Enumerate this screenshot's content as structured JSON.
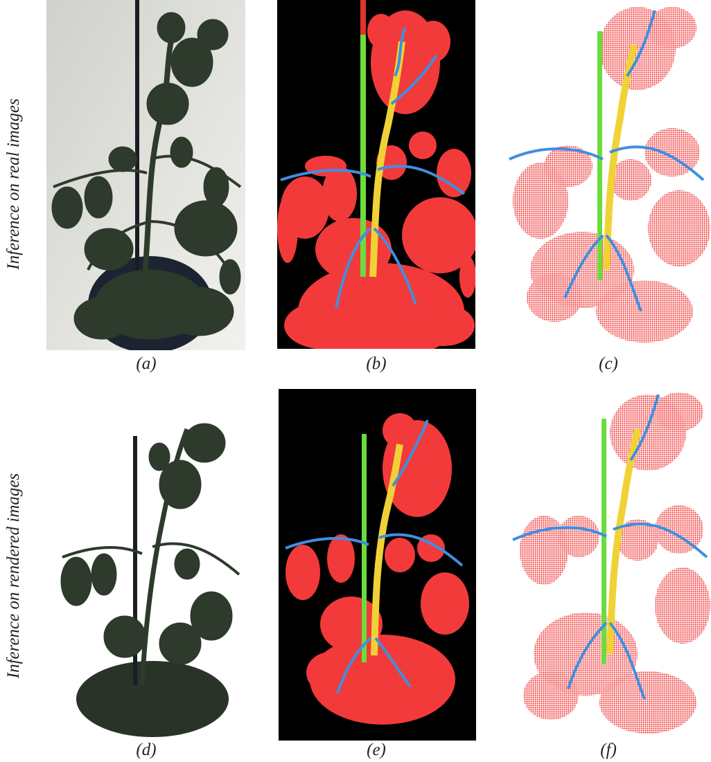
{
  "figure": {
    "row_labels": [
      "Inference on real images",
      "Inference on rendered images"
    ],
    "panels": [
      {
        "id": "a",
        "caption": "(a)",
        "kind": "photo-real"
      },
      {
        "id": "b",
        "caption": "(b)",
        "kind": "segmentation-mask"
      },
      {
        "id": "c",
        "caption": "(c)",
        "kind": "point-cloud"
      },
      {
        "id": "d",
        "caption": "(d)",
        "kind": "photo-rendered"
      },
      {
        "id": "e",
        "caption": "(e)",
        "kind": "segmentation-mask"
      },
      {
        "id": "f",
        "caption": "(f)",
        "kind": "point-cloud"
      }
    ],
    "colors": {
      "leaf_mask": "#f23a3a",
      "petiole": "#3f8fe0",
      "stem": "#f0d236",
      "support_pole": "#6bdc3c",
      "pole_tip": "#e0342e",
      "mask_background": "#000000",
      "photo_wall": "#d8d9d3",
      "plant_dark": "#2d3a2c",
      "pot": "#1b2430"
    }
  }
}
